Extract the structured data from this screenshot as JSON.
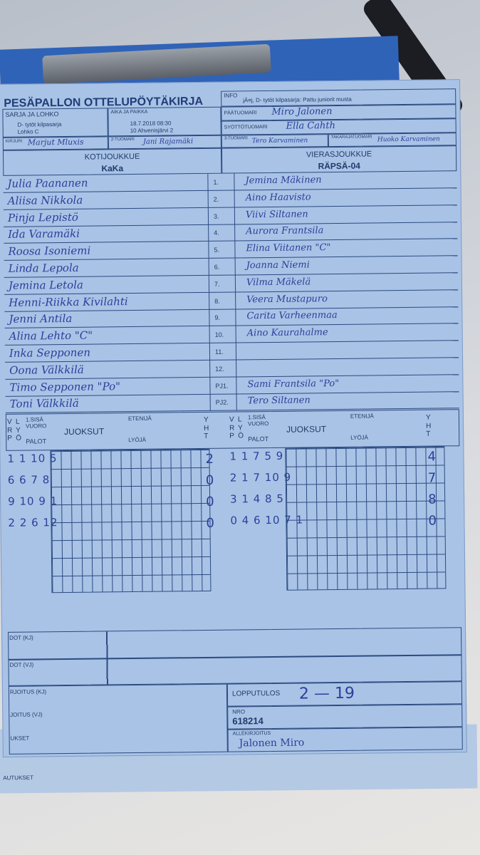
{
  "header": {
    "title": "PESÄPALLON OTTELUPÖYTÄKIRJA",
    "info_label": "INFO",
    "info_value": "jÄ¤j, D- tytöt kilpasarja: Pattu juniorit musta",
    "series_label": "SARJA JA LOHKO",
    "series_value1": "D- tytöt kilpasarja",
    "series_value2": "Lohko C",
    "time_label": "AIKA JA PAIKKA",
    "time_value1": "18.7.2018 08:30",
    "time_value2": "10 Ahvenisjärvi 2",
    "head_umpire_label": "PÄÄTUOMARI",
    "head_umpire": "Miro Jalonen",
    "pitch_umpire_label": "SYÖTTÖTUOMARI",
    "pitch_umpire": "Ella Cahth",
    "scorer_label": "KIRJURI",
    "scorer": "Marjut Mluxis",
    "umpire2_label": "2-TUOMARI",
    "umpire2": "Jani Rajamäki",
    "umpire3_label": "3-TUOMARI",
    "umpire3": "Tero Karvaminen",
    "back_umpire_label": "TAKARAJATUOMARI",
    "back_umpire": "Huoko Karvaminen"
  },
  "teams": {
    "home_label": "KOTIJOUKKUE",
    "home": "KaKa",
    "away_label": "VIERASJOUKKUE",
    "away": "RÄPSÄ-04"
  },
  "roster": [
    {
      "no": "1.",
      "home": "Julia Paananen",
      "away": "Jemina Mäkinen"
    },
    {
      "no": "2.",
      "home": "Aliisa Nikkola",
      "away": "Aino Haavisto"
    },
    {
      "no": "3.",
      "home": "Pinja Lepistö",
      "away": "Viivi Siltanen"
    },
    {
      "no": "4.",
      "home": "Ida Varamäki",
      "away": "Aurora Frantsila"
    },
    {
      "no": "5.",
      "home": "Roosa Isoniemi",
      "away": "Elina Viitanen \"C\""
    },
    {
      "no": "6.",
      "home": "Linda Lepola",
      "away": "Joanna Niemi"
    },
    {
      "no": "7.",
      "home": "Jemina Letola",
      "away": "Vilma Mäkelä"
    },
    {
      "no": "8.",
      "home": "Henni-Riikka Kivilahti",
      "away": "Veera Mustapuro"
    },
    {
      "no": "9.",
      "home": "Jenni Antila",
      "away": "Carita Varheenmaa"
    },
    {
      "no": "10.",
      "home": "Alina Lehto \"C\"",
      "away": "Aino Kaurahalme"
    },
    {
      "no": "11.",
      "home": "Inka Sepponen",
      "away": ""
    },
    {
      "no": "12.",
      "home": "Oona Välkkilä",
      "away": ""
    },
    {
      "no": "PJ1.",
      "home": "Timo Sepponen \"Po\"",
      "away": "Sami Frantsila \"Po\""
    },
    {
      "no": "PJ2.",
      "home": "Toni Välkkilä",
      "away": "Tero Siltanen"
    }
  ],
  "score_headers": {
    "vrp": "V R P",
    "lyo": "L Y Ö",
    "sisa": "1.SISÄ VUORO",
    "palot": "PALOT",
    "juoksut": "JUOKSUT",
    "etenija": "ETENIJÄ",
    "lyoja": "LYÖJÄ",
    "yht": "Y H T"
  },
  "home_innings": [
    {
      "palot": "1 1 10 5",
      "yht": "2"
    },
    {
      "palot": "6 6 7 8",
      "yht": "0"
    },
    {
      "palot": "9 10 9 1",
      "yht": "0"
    },
    {
      "palot": "2 2 6 12",
      "yht": "0"
    }
  ],
  "away_innings": [
    {
      "palot": "1 1 7 5 9",
      "yht": "4"
    },
    {
      "palot": "2 1 7 10 9",
      "yht": "7"
    },
    {
      "palot": "3 1 4 8 5",
      "yht": "8"
    },
    {
      "palot": "0 4 6 10 7 1",
      "yht": "0"
    }
  ],
  "footer": {
    "kj_label": "DOT (KJ)",
    "vj_label": "DOT (VJ)",
    "sig_kj_label": "RJOITUS (KJ)",
    "sig_vj_label": "JOITUS (VJ)",
    "remarks_label": "UKSET",
    "remarks2_label": "AUTUKSET",
    "result_label": "LOPPUTULOS",
    "result": "2 — 19",
    "nro_label": "NRO",
    "nro": "618214",
    "signature_label": "ALLEKIRJOITUS",
    "signature": "Jalonen Miro"
  }
}
